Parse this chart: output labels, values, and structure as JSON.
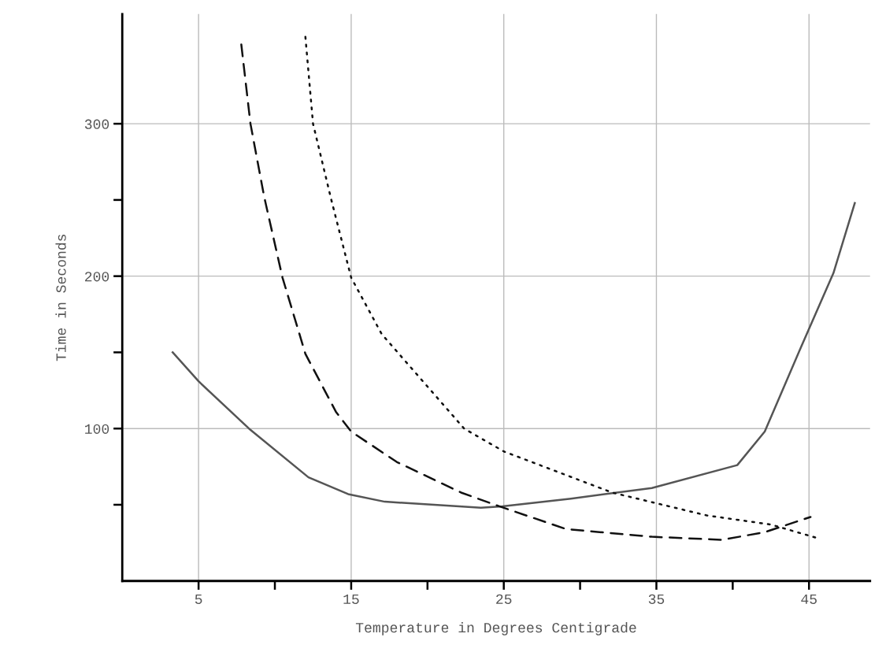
{
  "chart_data": {
    "type": "line",
    "xlabel": "Temperature in Degrees Centigrade",
    "ylabel": "Time in Seconds",
    "xlim": [
      0,
      49
    ],
    "ylim": [
      0,
      372
    ],
    "xticks": [
      5,
      {
        "value": 10,
        "label": null
      },
      15,
      {
        "value": 20,
        "label": null
      },
      25,
      {
        "value": 30,
        "label": null
      },
      35,
      {
        "value": 40,
        "label": null
      },
      45
    ],
    "yticks": [
      {
        "value": 50,
        "label": null
      },
      100,
      {
        "value": 150,
        "label": null
      },
      200,
      {
        "value": 250,
        "label": null
      },
      300
    ],
    "grid": true,
    "legend": false,
    "marker": "none",
    "series": [
      {
        "color": "#555555",
        "line_style": "solid",
        "x": [
          3.3,
          5,
          8.3,
          12.2,
          14.8,
          17.2,
          23.5,
          24.9,
          29.4,
          34.7,
          40.3,
          42.1,
          44.5,
          46.6,
          48.0
        ],
        "values": [
          150,
          131,
          100,
          68,
          57,
          52,
          48,
          49,
          54,
          61,
          76,
          98,
          154,
          202,
          248
        ]
      },
      {
        "color": "#111111",
        "line_style": "dashed",
        "x": [
          7.8,
          8.4,
          9.3,
          10.5,
          12.0,
          14.0,
          15.0,
          18.0,
          22.2,
          24.7,
          29.1,
          34.7,
          39.3,
          42.1,
          45.1
        ],
        "values": [
          352,
          300,
          252,
          199,
          149,
          111,
          98,
          78,
          58,
          49,
          34,
          29,
          27,
          32,
          42
        ]
      },
      {
        "color": "#111111",
        "line_style": "dotted",
        "x": [
          12.0,
          12.5,
          13.7,
          15.0,
          17.0,
          19.7,
          22.4,
          25.0,
          32.1,
          38.3,
          42.5,
          45.6
        ],
        "values": [
          357,
          300,
          250,
          199,
          162,
          131,
          100,
          85,
          58,
          43,
          37,
          28
        ]
      }
    ]
  }
}
